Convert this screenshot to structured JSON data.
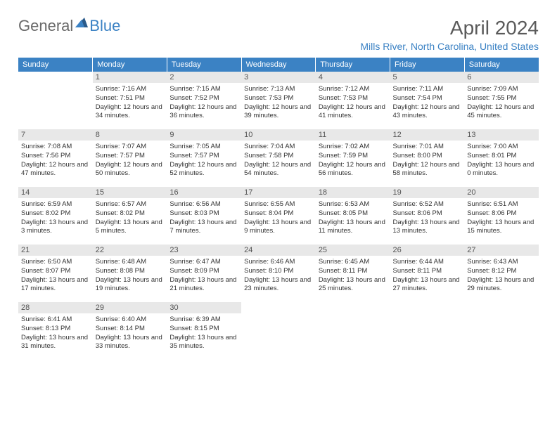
{
  "logo": {
    "text1": "General",
    "text2": "Blue"
  },
  "title": "April 2024",
  "location": "Mills River, North Carolina, United States",
  "colors": {
    "header_bg": "#3b82c4",
    "header_text": "#ffffff",
    "daynum_bg": "#e8e8e8",
    "daynum_text": "#555555",
    "body_text": "#333333",
    "title_text": "#5a5a5a",
    "location_text": "#3b82c4",
    "logo_gray": "#6a6a6a",
    "logo_blue": "#3b82c4"
  },
  "weekdays": [
    "Sunday",
    "Monday",
    "Tuesday",
    "Wednesday",
    "Thursday",
    "Friday",
    "Saturday"
  ],
  "weeks": [
    [
      null,
      {
        "n": "1",
        "sr": "7:16 AM",
        "ss": "7:51 PM",
        "dl": "12 hours and 34 minutes."
      },
      {
        "n": "2",
        "sr": "7:15 AM",
        "ss": "7:52 PM",
        "dl": "12 hours and 36 minutes."
      },
      {
        "n": "3",
        "sr": "7:13 AM",
        "ss": "7:53 PM",
        "dl": "12 hours and 39 minutes."
      },
      {
        "n": "4",
        "sr": "7:12 AM",
        "ss": "7:53 PM",
        "dl": "12 hours and 41 minutes."
      },
      {
        "n": "5",
        "sr": "7:11 AM",
        "ss": "7:54 PM",
        "dl": "12 hours and 43 minutes."
      },
      {
        "n": "6",
        "sr": "7:09 AM",
        "ss": "7:55 PM",
        "dl": "12 hours and 45 minutes."
      }
    ],
    [
      {
        "n": "7",
        "sr": "7:08 AM",
        "ss": "7:56 PM",
        "dl": "12 hours and 47 minutes."
      },
      {
        "n": "8",
        "sr": "7:07 AM",
        "ss": "7:57 PM",
        "dl": "12 hours and 50 minutes."
      },
      {
        "n": "9",
        "sr": "7:05 AM",
        "ss": "7:57 PM",
        "dl": "12 hours and 52 minutes."
      },
      {
        "n": "10",
        "sr": "7:04 AM",
        "ss": "7:58 PM",
        "dl": "12 hours and 54 minutes."
      },
      {
        "n": "11",
        "sr": "7:02 AM",
        "ss": "7:59 PM",
        "dl": "12 hours and 56 minutes."
      },
      {
        "n": "12",
        "sr": "7:01 AM",
        "ss": "8:00 PM",
        "dl": "12 hours and 58 minutes."
      },
      {
        "n": "13",
        "sr": "7:00 AM",
        "ss": "8:01 PM",
        "dl": "13 hours and 0 minutes."
      }
    ],
    [
      {
        "n": "14",
        "sr": "6:59 AM",
        "ss": "8:02 PM",
        "dl": "13 hours and 3 minutes."
      },
      {
        "n": "15",
        "sr": "6:57 AM",
        "ss": "8:02 PM",
        "dl": "13 hours and 5 minutes."
      },
      {
        "n": "16",
        "sr": "6:56 AM",
        "ss": "8:03 PM",
        "dl": "13 hours and 7 minutes."
      },
      {
        "n": "17",
        "sr": "6:55 AM",
        "ss": "8:04 PM",
        "dl": "13 hours and 9 minutes."
      },
      {
        "n": "18",
        "sr": "6:53 AM",
        "ss": "8:05 PM",
        "dl": "13 hours and 11 minutes."
      },
      {
        "n": "19",
        "sr": "6:52 AM",
        "ss": "8:06 PM",
        "dl": "13 hours and 13 minutes."
      },
      {
        "n": "20",
        "sr": "6:51 AM",
        "ss": "8:06 PM",
        "dl": "13 hours and 15 minutes."
      }
    ],
    [
      {
        "n": "21",
        "sr": "6:50 AM",
        "ss": "8:07 PM",
        "dl": "13 hours and 17 minutes."
      },
      {
        "n": "22",
        "sr": "6:48 AM",
        "ss": "8:08 PM",
        "dl": "13 hours and 19 minutes."
      },
      {
        "n": "23",
        "sr": "6:47 AM",
        "ss": "8:09 PM",
        "dl": "13 hours and 21 minutes."
      },
      {
        "n": "24",
        "sr": "6:46 AM",
        "ss": "8:10 PM",
        "dl": "13 hours and 23 minutes."
      },
      {
        "n": "25",
        "sr": "6:45 AM",
        "ss": "8:11 PM",
        "dl": "13 hours and 25 minutes."
      },
      {
        "n": "26",
        "sr": "6:44 AM",
        "ss": "8:11 PM",
        "dl": "13 hours and 27 minutes."
      },
      {
        "n": "27",
        "sr": "6:43 AM",
        "ss": "8:12 PM",
        "dl": "13 hours and 29 minutes."
      }
    ],
    [
      {
        "n": "28",
        "sr": "6:41 AM",
        "ss": "8:13 PM",
        "dl": "13 hours and 31 minutes."
      },
      {
        "n": "29",
        "sr": "6:40 AM",
        "ss": "8:14 PM",
        "dl": "13 hours and 33 minutes."
      },
      {
        "n": "30",
        "sr": "6:39 AM",
        "ss": "8:15 PM",
        "dl": "13 hours and 35 minutes."
      },
      null,
      null,
      null,
      null
    ]
  ],
  "labels": {
    "sunrise": "Sunrise:",
    "sunset": "Sunset:",
    "daylight": "Daylight:"
  }
}
